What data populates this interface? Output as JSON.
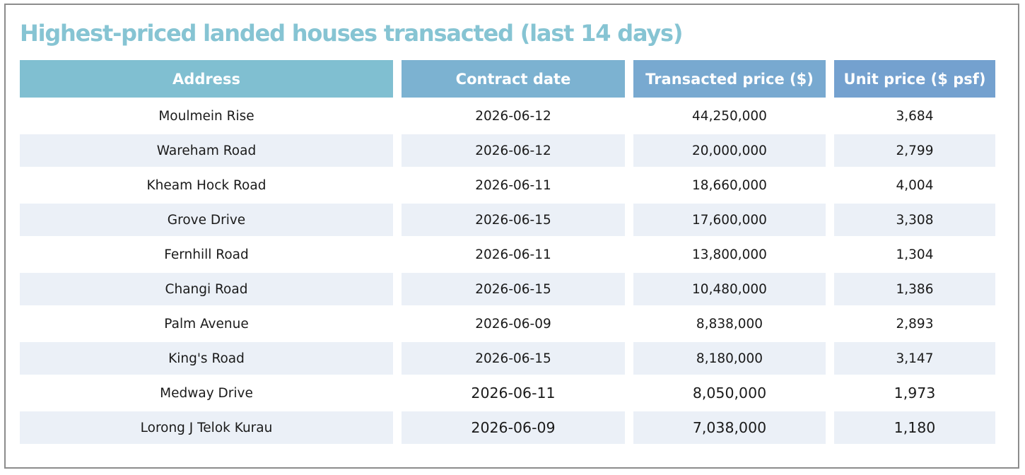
{
  "title": "Highest-priced landed houses transacted (last 14 days)",
  "columns": {
    "address": "Address",
    "contract_date": "Contract date",
    "transacted_price": "Transacted price ($)",
    "unit_price": "Unit price ($ psf)"
  },
  "rows": [
    {
      "address": "Moulmein Rise",
      "contract_date": "2026-06-12",
      "transacted_price": "44,250,000",
      "unit_price": "3,684"
    },
    {
      "address": "Wareham Road",
      "contract_date": "2026-06-12",
      "transacted_price": "20,000,000",
      "unit_price": "2,799"
    },
    {
      "address": "Kheam Hock Road",
      "contract_date": "2026-06-11",
      "transacted_price": "18,660,000",
      "unit_price": "4,004"
    },
    {
      "address": "Grove Drive",
      "contract_date": "2026-06-15",
      "transacted_price": "17,600,000",
      "unit_price": "3,308"
    },
    {
      "address": "Fernhill Road",
      "contract_date": "2026-06-11",
      "transacted_price": "13,800,000",
      "unit_price": "1,304"
    },
    {
      "address": "Changi Road",
      "contract_date": "2026-06-15",
      "transacted_price": "10,480,000",
      "unit_price": "1,386"
    },
    {
      "address": "Palm Avenue",
      "contract_date": "2026-06-09",
      "transacted_price": "8,838,000",
      "unit_price": "2,893"
    },
    {
      "address": "King's Road",
      "contract_date": "2026-06-15",
      "transacted_price": "8,180,000",
      "unit_price": "3,147"
    },
    {
      "address": "Medway Drive",
      "contract_date": "2026-06-11",
      "transacted_price": "8,050,000",
      "unit_price": "1,973"
    },
    {
      "address": "Lorong J Telok Kurau",
      "contract_date": "2026-06-09",
      "transacted_price": "7,038,000",
      "unit_price": "1,180"
    }
  ],
  "colors": {
    "title": "#86c4d3",
    "header_start": "#80bfd1",
    "header_end": "#74a1cf",
    "stripe": "#ebf0f7",
    "border": "#8c8c8c"
  }
}
